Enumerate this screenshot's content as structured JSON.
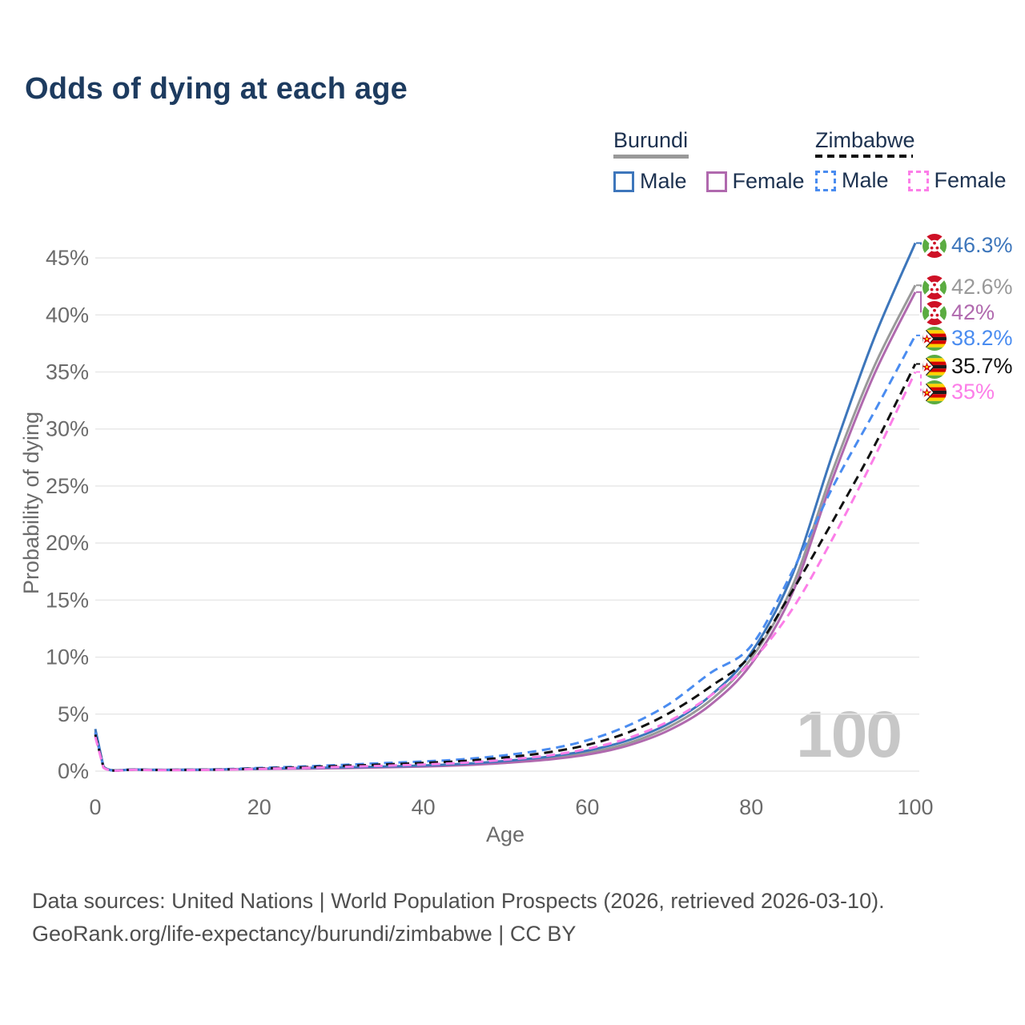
{
  "header": {
    "title": "Odds of dying at each age"
  },
  "legend": {
    "groups": [
      {
        "name": "Burundi",
        "line_style": "solid",
        "underline_color": "#999999",
        "items": [
          {
            "label": "Male",
            "color": "#3d76bb",
            "dashed": false
          },
          {
            "label": "Female",
            "color": "#b069ae",
            "dashed": false
          }
        ]
      },
      {
        "name": "Zimbabwe",
        "line_style": "dashed",
        "underline_color": "#111111",
        "items": [
          {
            "label": "Male",
            "color": "#4a8cf0",
            "dashed": true
          },
          {
            "label": "Female",
            "color": "#fc7ee8",
            "dashed": true
          }
        ]
      }
    ]
  },
  "chart_data": {
    "type": "line",
    "title": "Odds of dying at each age",
    "xlabel": "Age",
    "ylabel": "Probability of dying",
    "x_ticks": [
      0,
      20,
      40,
      60,
      80,
      100
    ],
    "y_ticks_percent": [
      0,
      5,
      10,
      15,
      20,
      25,
      30,
      35,
      40,
      45
    ],
    "xlim": [
      0,
      100
    ],
    "ylim_percent": [
      0,
      47
    ],
    "grid": "horizontal",
    "legend_position": "top-right",
    "age_counter": "100",
    "x": [
      0,
      1,
      5,
      10,
      15,
      20,
      25,
      30,
      35,
      40,
      45,
      50,
      55,
      60,
      65,
      70,
      75,
      80,
      85,
      90,
      95,
      100
    ],
    "series": [
      {
        "name": "Burundi Male",
        "country": "Burundi",
        "sex": "Male",
        "color": "#3d76bb",
        "dash": false,
        "end_label": "46.3%",
        "values": [
          3.7,
          0.4,
          0.15,
          0.12,
          0.15,
          0.22,
          0.28,
          0.33,
          0.4,
          0.5,
          0.65,
          0.9,
          1.25,
          1.8,
          2.7,
          4.2,
          6.6,
          10.4,
          17.2,
          28.0,
          38.0,
          46.3
        ]
      },
      {
        "name": "Burundi Both sexes",
        "country": "Burundi",
        "sex": "Both",
        "color": "#999999",
        "dash": false,
        "end_label": "42.6%",
        "values": [
          3.5,
          0.38,
          0.14,
          0.11,
          0.14,
          0.2,
          0.25,
          0.3,
          0.36,
          0.45,
          0.58,
          0.8,
          1.1,
          1.6,
          2.45,
          3.9,
          6.2,
          9.9,
          16.2,
          26.5,
          35.5,
          42.6
        ]
      },
      {
        "name": "Burundi Female",
        "country": "Burundi",
        "sex": "Female",
        "color": "#b069ae",
        "dash": false,
        "end_label": "42%",
        "values": [
          3.3,
          0.36,
          0.13,
          0.1,
          0.13,
          0.18,
          0.22,
          0.27,
          0.33,
          0.41,
          0.53,
          0.72,
          1.0,
          1.45,
          2.25,
          3.6,
          5.8,
          9.4,
          15.6,
          25.8,
          34.8,
          42.0
        ]
      },
      {
        "name": "Zimbabwe Male",
        "country": "Zimbabwe",
        "sex": "Male",
        "color": "#4a8cf0",
        "dash": true,
        "end_label": "38.2%",
        "values": [
          3.4,
          0.35,
          0.14,
          0.12,
          0.16,
          0.28,
          0.4,
          0.55,
          0.7,
          0.85,
          1.05,
          1.4,
          1.9,
          2.7,
          4.0,
          5.9,
          8.6,
          11.0,
          17.5,
          25.0,
          31.5,
          38.2
        ]
      },
      {
        "name": "Zimbabwe Both sexes",
        "country": "Zimbabwe",
        "sex": "Both",
        "color": "#111111",
        "dash": true,
        "end_label": "35.7%",
        "values": [
          3.2,
          0.33,
          0.13,
          0.11,
          0.14,
          0.24,
          0.34,
          0.46,
          0.58,
          0.72,
          0.9,
          1.2,
          1.62,
          2.3,
          3.4,
          5.1,
          7.4,
          10.2,
          15.8,
          22.0,
          28.5,
          35.7
        ]
      },
      {
        "name": "Zimbabwe Female",
        "country": "Zimbabwe",
        "sex": "Female",
        "color": "#fc7ee8",
        "dash": true,
        "end_label": "35%",
        "values": [
          3.0,
          0.31,
          0.12,
          0.1,
          0.12,
          0.2,
          0.28,
          0.37,
          0.47,
          0.58,
          0.74,
          1.0,
          1.35,
          1.95,
          2.9,
          4.4,
          6.6,
          9.6,
          14.2,
          20.5,
          27.5,
          35.0
        ]
      }
    ],
    "colors": {
      "grid": "#e8e8e8",
      "axis_text": "#6b6b6b",
      "watermark": "#c7c7c7"
    }
  },
  "footer": {
    "line1": "Data sources: United Nations | World Population Prospects (2026, retrieved 2026-03-10).",
    "line2": "GeoRank.org/life-expectancy/burundi/zimbabwe | CC BY"
  }
}
